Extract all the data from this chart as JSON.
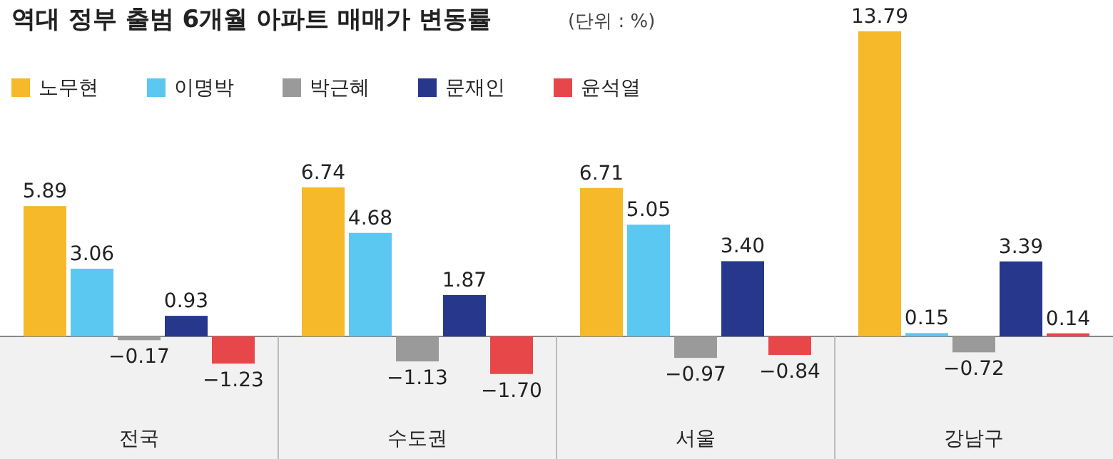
{
  "chart_data": {
    "type": "bar",
    "title": "역대 정부 출범 6개월 아파트 매매가 변동률",
    "subtitle": "(단위 : %)",
    "categories": [
      "전국",
      "수도권",
      "서울",
      "강남구"
    ],
    "legend": "top left",
    "series": [
      {
        "name": "노무현",
        "color": "#f5b92a",
        "values": [
          5.89,
          6.74,
          6.71,
          13.79
        ],
        "value_labels": [
          "5.89",
          "6.74",
          "6.71",
          "13.79"
        ]
      },
      {
        "name": "이명박",
        "color": "#5ac8f0",
        "values": [
          3.06,
          4.68,
          5.05,
          0.15
        ],
        "value_labels": [
          "3.06",
          "4.68",
          "5.05",
          "0.15"
        ]
      },
      {
        "name": "박근혜",
        "color": "#9a9a9a",
        "values": [
          -0.17,
          -1.13,
          -0.97,
          -0.72
        ],
        "value_labels": [
          "−0.17",
          "−1.13",
          "−0.97",
          "−0.72"
        ]
      },
      {
        "name": "문재인",
        "color": "#27388c",
        "values": [
          0.93,
          1.87,
          3.4,
          3.39
        ],
        "value_labels": [
          "0.93",
          "1.87",
          "3.40",
          "3.39"
        ]
      },
      {
        "name": "윤석열",
        "color": "#e8474a",
        "values": [
          -1.23,
          -1.7,
          -0.84,
          0.14
        ],
        "value_labels": [
          "−1.23",
          "−1.70",
          "−0.84",
          "0.14"
        ]
      }
    ]
  }
}
